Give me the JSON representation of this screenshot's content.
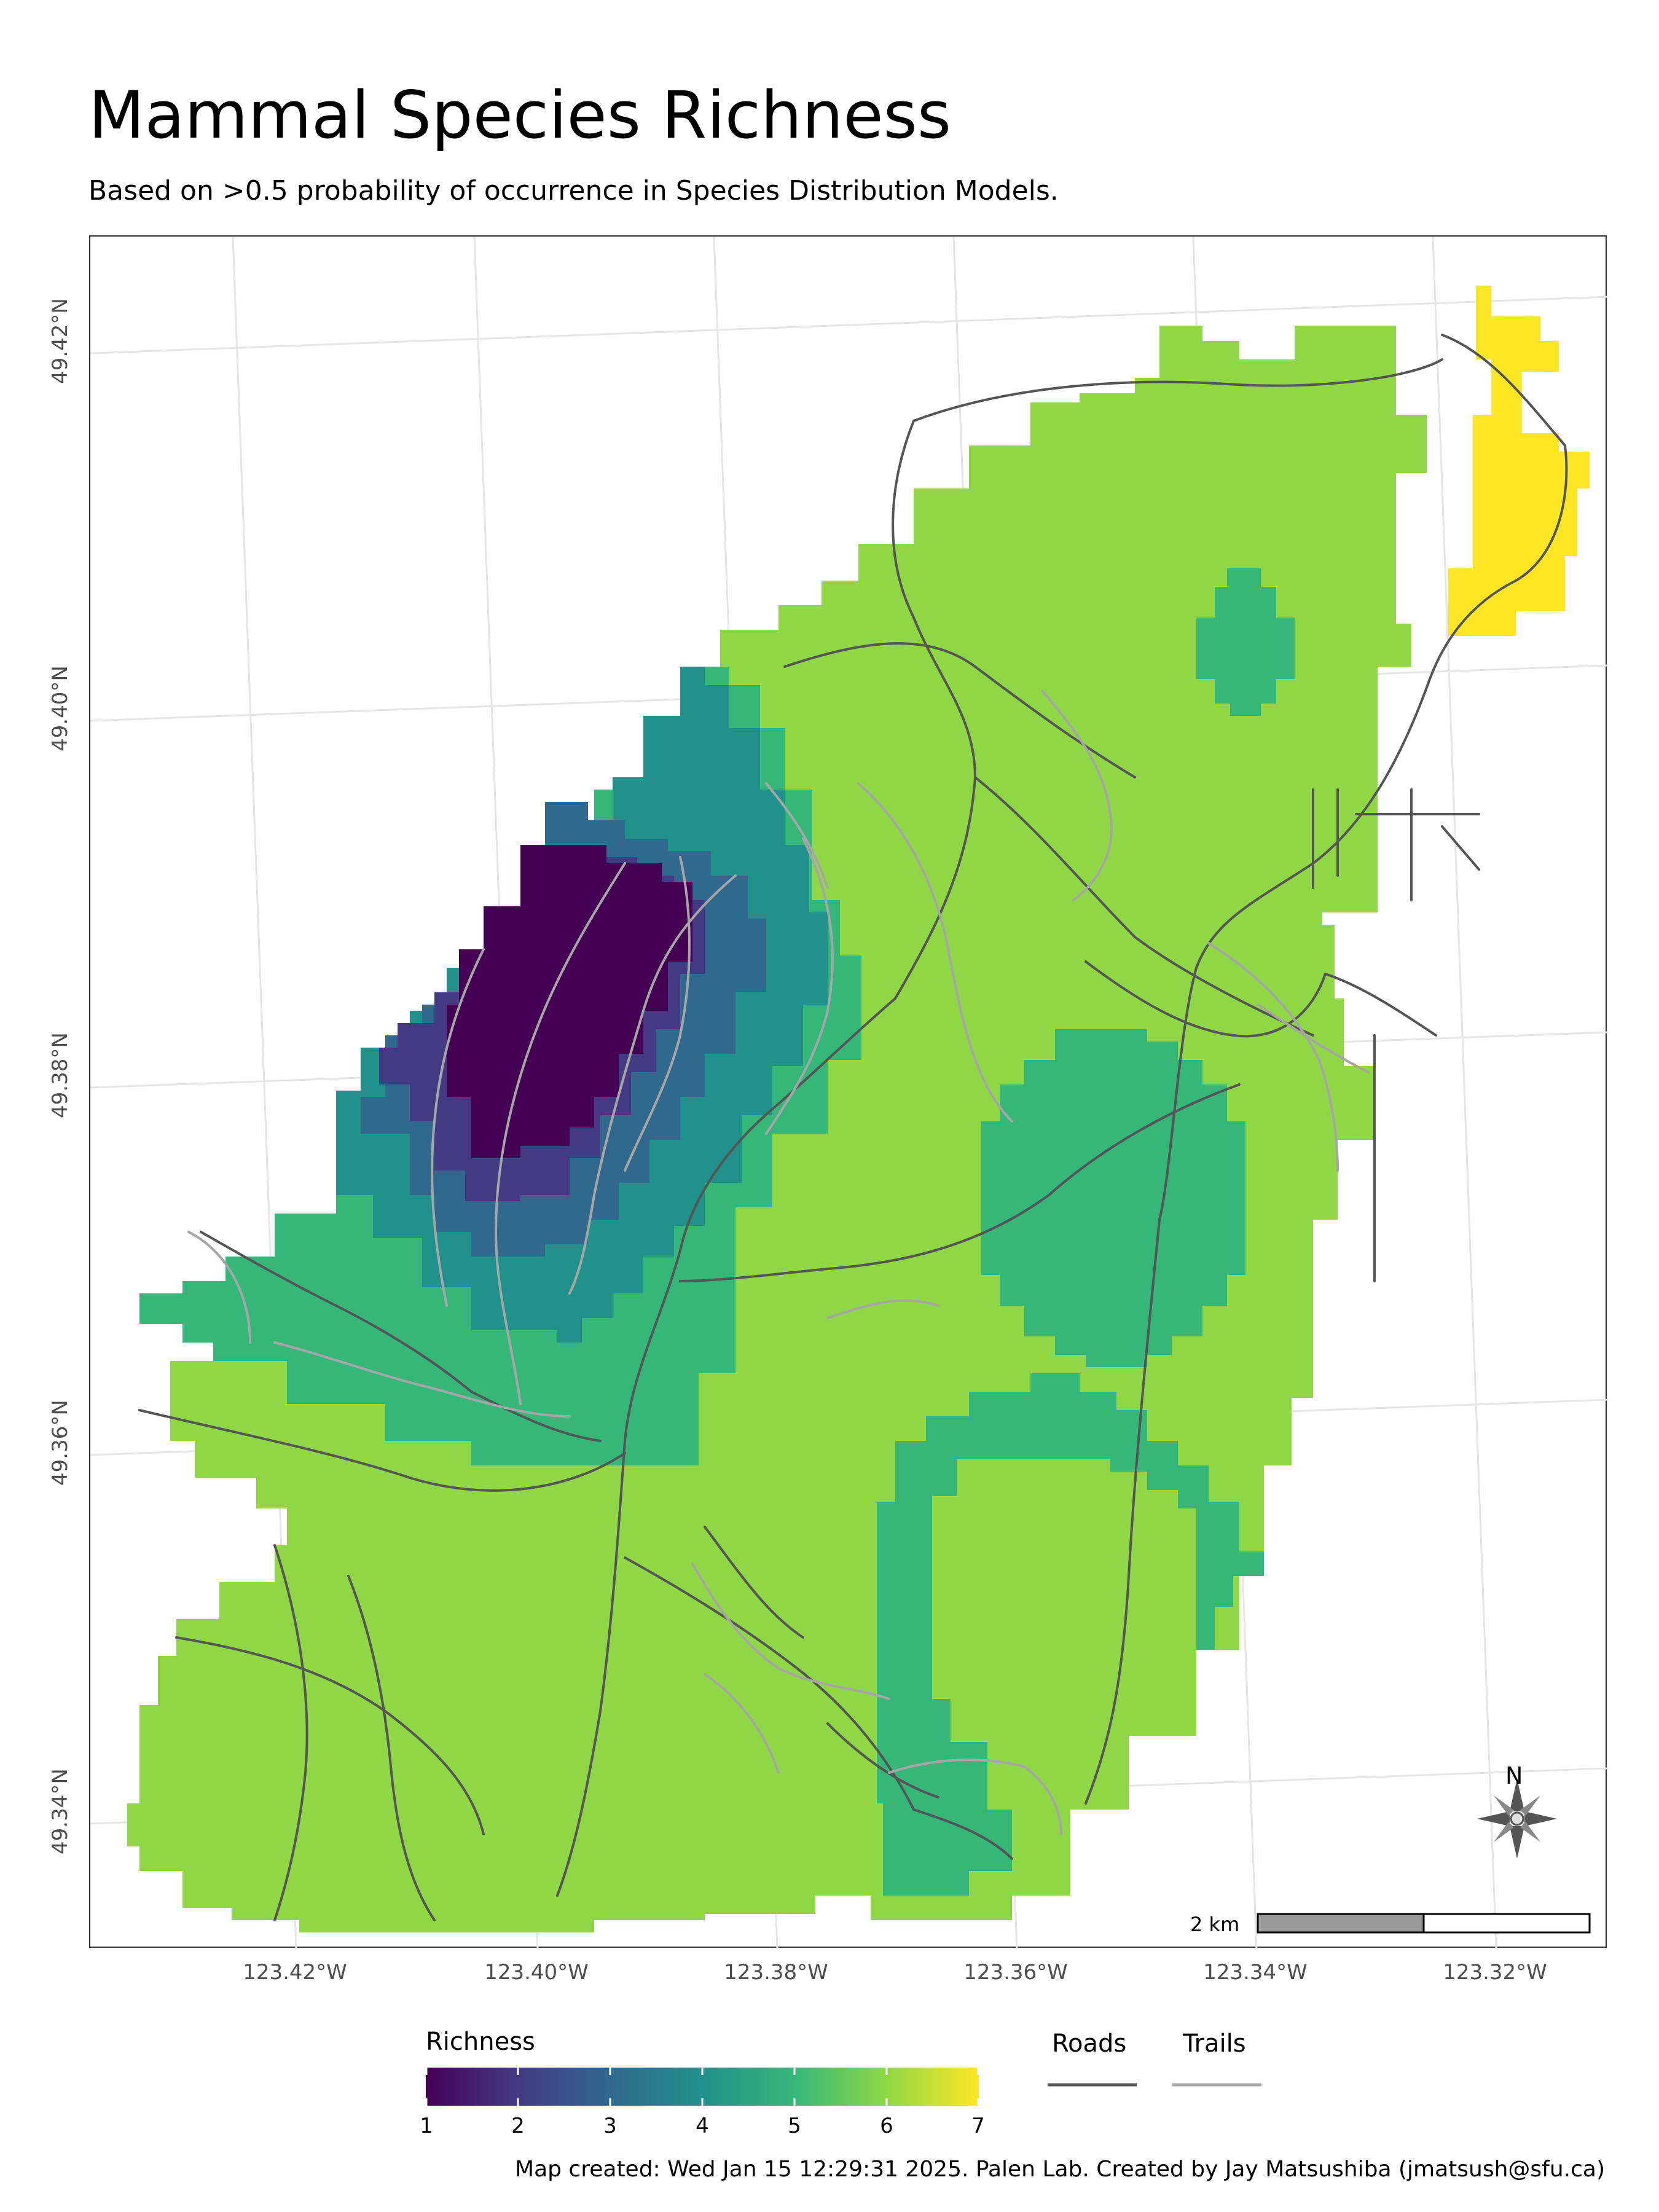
{
  "title": "Mammal Species Richness",
  "subtitle": "Based on >0.5 probability of occurrence in Species Distribution Models.",
  "axes": {
    "lat_labels": [
      "49.42°N",
      "49.40°N",
      "49.38°N",
      "49.36°N",
      "49.34°N"
    ],
    "lon_labels": [
      "123.42°W",
      "123.40°W",
      "123.38°W",
      "123.36°W",
      "123.34°W",
      "123.32°W"
    ]
  },
  "legend": {
    "richness_title": "Richness",
    "ticks": [
      "1",
      "2",
      "3",
      "4",
      "5",
      "6",
      "7"
    ],
    "colors": [
      "#440154",
      "#443a83",
      "#31688e",
      "#21918c",
      "#35b779",
      "#8fd744",
      "#fde725"
    ],
    "roads_label": "Roads",
    "trails_label": "Trails",
    "road_color": "#555555",
    "trail_color": "#a6a6a6"
  },
  "scale_bar": {
    "label": "2 km"
  },
  "north_arrow": {
    "label": "N"
  },
  "caption": "Map created: Wed Jan 15 12:29:31 2025. Palen Lab. Created by Jay Matsushiba (jmatsush@sfu.ca)"
}
